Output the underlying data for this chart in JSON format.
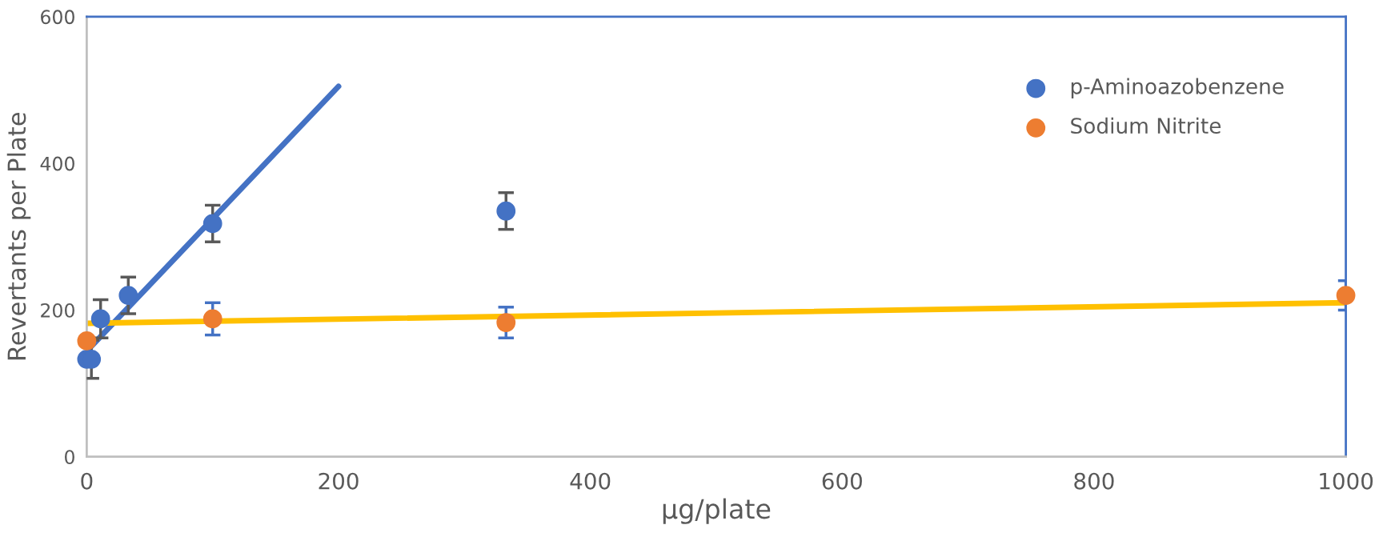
{
  "chart_data": {
    "type": "scatter",
    "xlabel": "µg/plate",
    "ylabel": "Revertants per Plate",
    "xlim": [
      0,
      1000
    ],
    "xticks": [
      0,
      200,
      400,
      600,
      800,
      1000
    ],
    "ylim": [
      0,
      600
    ],
    "yticks": [
      0,
      200,
      400,
      600
    ],
    "grid": false,
    "legend": "top right",
    "marker": "circle",
    "series": [
      {
        "name": "p-Aminoazobenzene",
        "color": "#4472c4",
        "x": [
          0,
          3.7,
          11,
          33,
          100,
          333
        ],
        "values": [
          133,
          133,
          188,
          220,
          318,
          335
        ],
        "errors": [
          null,
          26,
          26,
          25,
          25,
          25
        ]
      },
      {
        "name": "Sodium Nitrite",
        "color": "#ed7d31",
        "x": [
          0,
          100,
          333,
          1000
        ],
        "values": [
          158,
          188,
          183,
          220
        ],
        "errors": [
          null,
          22,
          21,
          20
        ]
      },
      {
        "type": "line",
        "marker": "none",
        "color": "#4472c4",
        "x": [
          0,
          200
        ],
        "values": [
          144,
          505
        ]
      },
      {
        "type": "line",
        "marker": "none",
        "color": "#ffc000",
        "x": [
          0,
          1000
        ],
        "values": [
          182,
          210
        ]
      }
    ]
  }
}
